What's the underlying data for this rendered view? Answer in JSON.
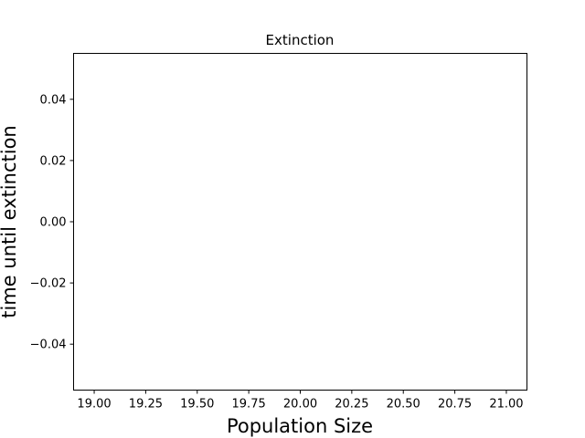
{
  "chart_data": {
    "type": "line",
    "title": "Extinction",
    "xlabel": "Population Size",
    "ylabel": "time until extinction",
    "xlim": [
      18.9,
      21.1
    ],
    "ylim": [
      -0.055,
      0.055
    ],
    "xticks": [
      19.0,
      19.25,
      19.5,
      19.75,
      20.0,
      20.25,
      20.5,
      20.75,
      21.0
    ],
    "xtick_labels": [
      "19.00",
      "19.25",
      "19.50",
      "19.75",
      "20.00",
      "20.25",
      "20.50",
      "20.75",
      "21.00"
    ],
    "yticks": [
      -0.04,
      -0.02,
      0.0,
      0.02,
      0.04
    ],
    "ytick_labels": [
      "−0.04",
      "−0.02",
      "0.00",
      "0.02",
      "0.04"
    ],
    "series": [],
    "grid": false,
    "colors": {
      "axes": "#000000",
      "background": "#ffffff"
    }
  }
}
